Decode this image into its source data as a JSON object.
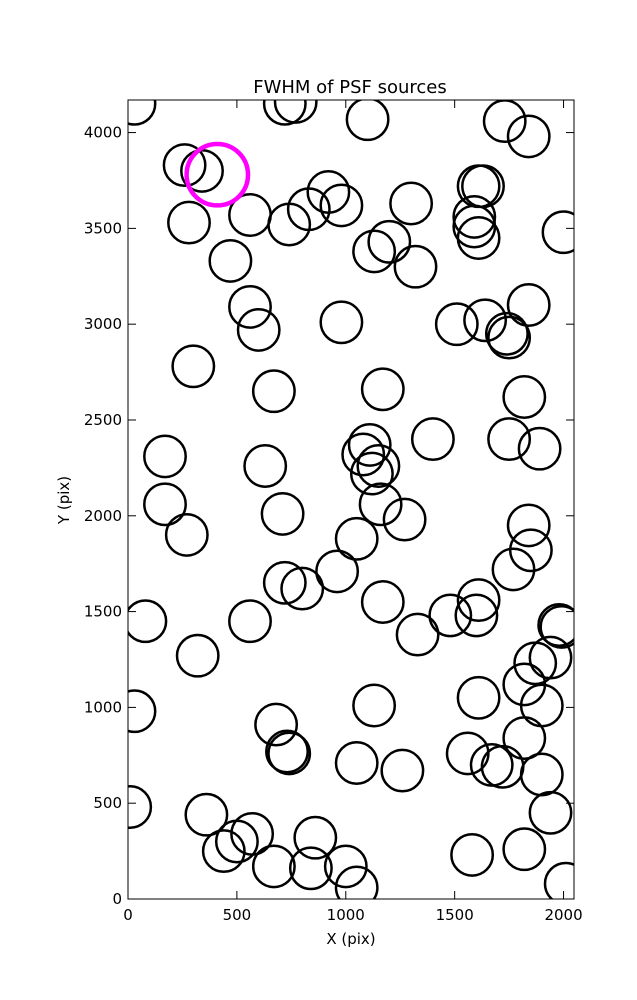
{
  "chart_data": {
    "type": "scatter",
    "title": "FWHM of PSF sources",
    "xlabel": "X (pix)",
    "ylabel": "Y (pix)",
    "xlim": [
      0,
      2048
    ],
    "ylim": [
      0,
      4170
    ],
    "xticks": [
      0,
      500,
      1000,
      1500,
      2000
    ],
    "yticks": [
      0,
      500,
      1000,
      1500,
      2000,
      2500,
      3000,
      3500,
      4000
    ],
    "grid": false,
    "marker_radius_pix": 95,
    "series": [
      {
        "color": "#000000",
        "points": [
          [
            30,
            4150
          ],
          [
            720,
            4150
          ],
          [
            770,
            4160
          ],
          [
            1100,
            4070
          ],
          [
            1730,
            4060
          ],
          [
            1840,
            3980
          ],
          [
            260,
            3830
          ],
          [
            340,
            3800
          ],
          [
            280,
            3530
          ],
          [
            560,
            3570
          ],
          [
            740,
            3520
          ],
          [
            830,
            3600
          ],
          [
            920,
            3690
          ],
          [
            980,
            3620
          ],
          [
            470,
            3330
          ],
          [
            1130,
            3380
          ],
          [
            1200,
            3430
          ],
          [
            1320,
            3300
          ],
          [
            1300,
            3630
          ],
          [
            1590,
            3560
          ],
          [
            1590,
            3510
          ],
          [
            1610,
            3450
          ],
          [
            1610,
            3720
          ],
          [
            1630,
            3720
          ],
          [
            2000,
            3480
          ],
          [
            560,
            3090
          ],
          [
            600,
            2970
          ],
          [
            980,
            3010
          ],
          [
            1510,
            3000
          ],
          [
            1640,
            3020
          ],
          [
            1740,
            2950
          ],
          [
            1750,
            2930
          ],
          [
            1840,
            3100
          ],
          [
            300,
            2780
          ],
          [
            670,
            2650
          ],
          [
            1170,
            2660
          ],
          [
            1820,
            2620
          ],
          [
            170,
            2310
          ],
          [
            630,
            2260
          ],
          [
            1080,
            2320
          ],
          [
            1110,
            2370
          ],
          [
            1120,
            2220
          ],
          [
            1150,
            2260
          ],
          [
            1400,
            2400
          ],
          [
            1750,
            2400
          ],
          [
            1890,
            2350
          ],
          [
            170,
            2060
          ],
          [
            270,
            1900
          ],
          [
            710,
            2010
          ],
          [
            1160,
            2060
          ],
          [
            1270,
            1980
          ],
          [
            1840,
            1950
          ],
          [
            1850,
            1820
          ],
          [
            1770,
            1720
          ],
          [
            1050,
            1880
          ],
          [
            720,
            1650
          ],
          [
            800,
            1620
          ],
          [
            960,
            1710
          ],
          [
            1170,
            1550
          ],
          [
            1330,
            1380
          ],
          [
            1480,
            1480
          ],
          [
            1600,
            1480
          ],
          [
            1610,
            1560
          ],
          [
            80,
            1450
          ],
          [
            560,
            1450
          ],
          [
            320,
            1270
          ],
          [
            1980,
            1430
          ],
          [
            1990,
            1420
          ],
          [
            1940,
            1260
          ],
          [
            1870,
            1230
          ],
          [
            1820,
            1120
          ],
          [
            1900,
            1010
          ],
          [
            30,
            980
          ],
          [
            1130,
            1010
          ],
          [
            1610,
            1050
          ],
          [
            680,
            910
          ],
          [
            730,
            770
          ],
          [
            740,
            760
          ],
          [
            1820,
            840
          ],
          [
            1560,
            760
          ],
          [
            1670,
            700
          ],
          [
            1720,
            690
          ],
          [
            1900,
            650
          ],
          [
            1050,
            710
          ],
          [
            1260,
            670
          ],
          [
            10,
            480
          ],
          [
            360,
            440
          ],
          [
            1940,
            450
          ],
          [
            440,
            250
          ],
          [
            500,
            300
          ],
          [
            570,
            340
          ],
          [
            670,
            170
          ],
          [
            840,
            160
          ],
          [
            860,
            320
          ],
          [
            1000,
            170
          ],
          [
            1050,
            60
          ],
          [
            1580,
            230
          ],
          [
            1820,
            260
          ],
          [
            2010,
            80
          ]
        ]
      },
      {
        "color": "#ff00ff",
        "points": [
          [
            410,
            3780
          ]
        ]
      }
    ]
  }
}
